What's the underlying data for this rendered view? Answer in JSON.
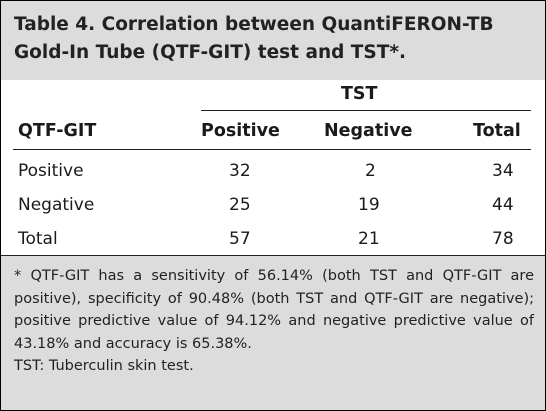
{
  "table": {
    "title": "Table 4. Correlation between QuantiFERON-TB Gold-In Tube (QTF-GIT) test and TST*.",
    "group_header": "TST",
    "row_header": "QTF-GIT",
    "columns": [
      "Positive",
      "Negative",
      "Total"
    ],
    "rows": [
      {
        "label": "Positive",
        "values": [
          "32",
          "2",
          "34"
        ]
      },
      {
        "label": "Negative",
        "values": [
          "25",
          "19",
          "44"
        ]
      },
      {
        "label": "Total",
        "values": [
          "57",
          "21",
          "78"
        ]
      }
    ]
  },
  "footnotes": [
    "* QTF-GIT has a sensitivity of 56.14% (both TST and QTF-GIT are positive), specificity of 90.48% (both TST and QTF-GIT are negative); positive predictive value of 94.12% and negative predictive value of 43.18% and accuracy is 65.38%.",
    "TST: Tuberculin skin test."
  ]
}
